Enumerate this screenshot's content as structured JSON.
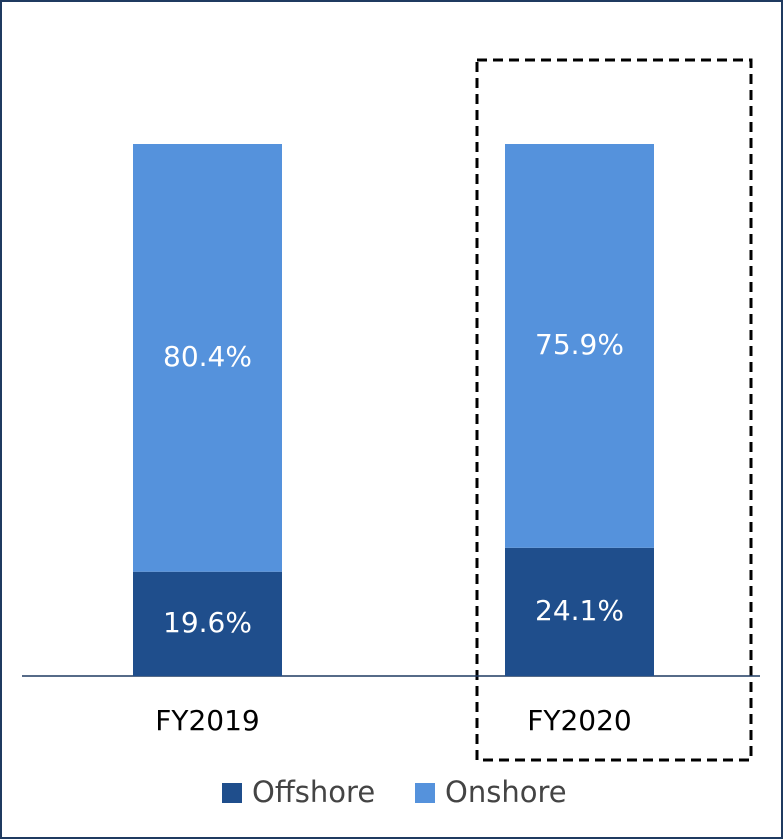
{
  "chart_data": {
    "type": "stacked_bar",
    "categories": [
      "FY2019",
      "FY2020"
    ],
    "series": [
      {
        "name": "Offshore",
        "color": "#1f4e8c",
        "values": [
          19.6,
          24.1
        ],
        "value_labels": [
          "19.6%",
          "24.1%"
        ]
      },
      {
        "name": "Onshore",
        "color": "#5592dc",
        "values": [
          80.4,
          75.9
        ],
        "value_labels": [
          "80.4%",
          "75.9%"
        ]
      }
    ],
    "ylim": [
      0,
      100
    ]
  }
}
